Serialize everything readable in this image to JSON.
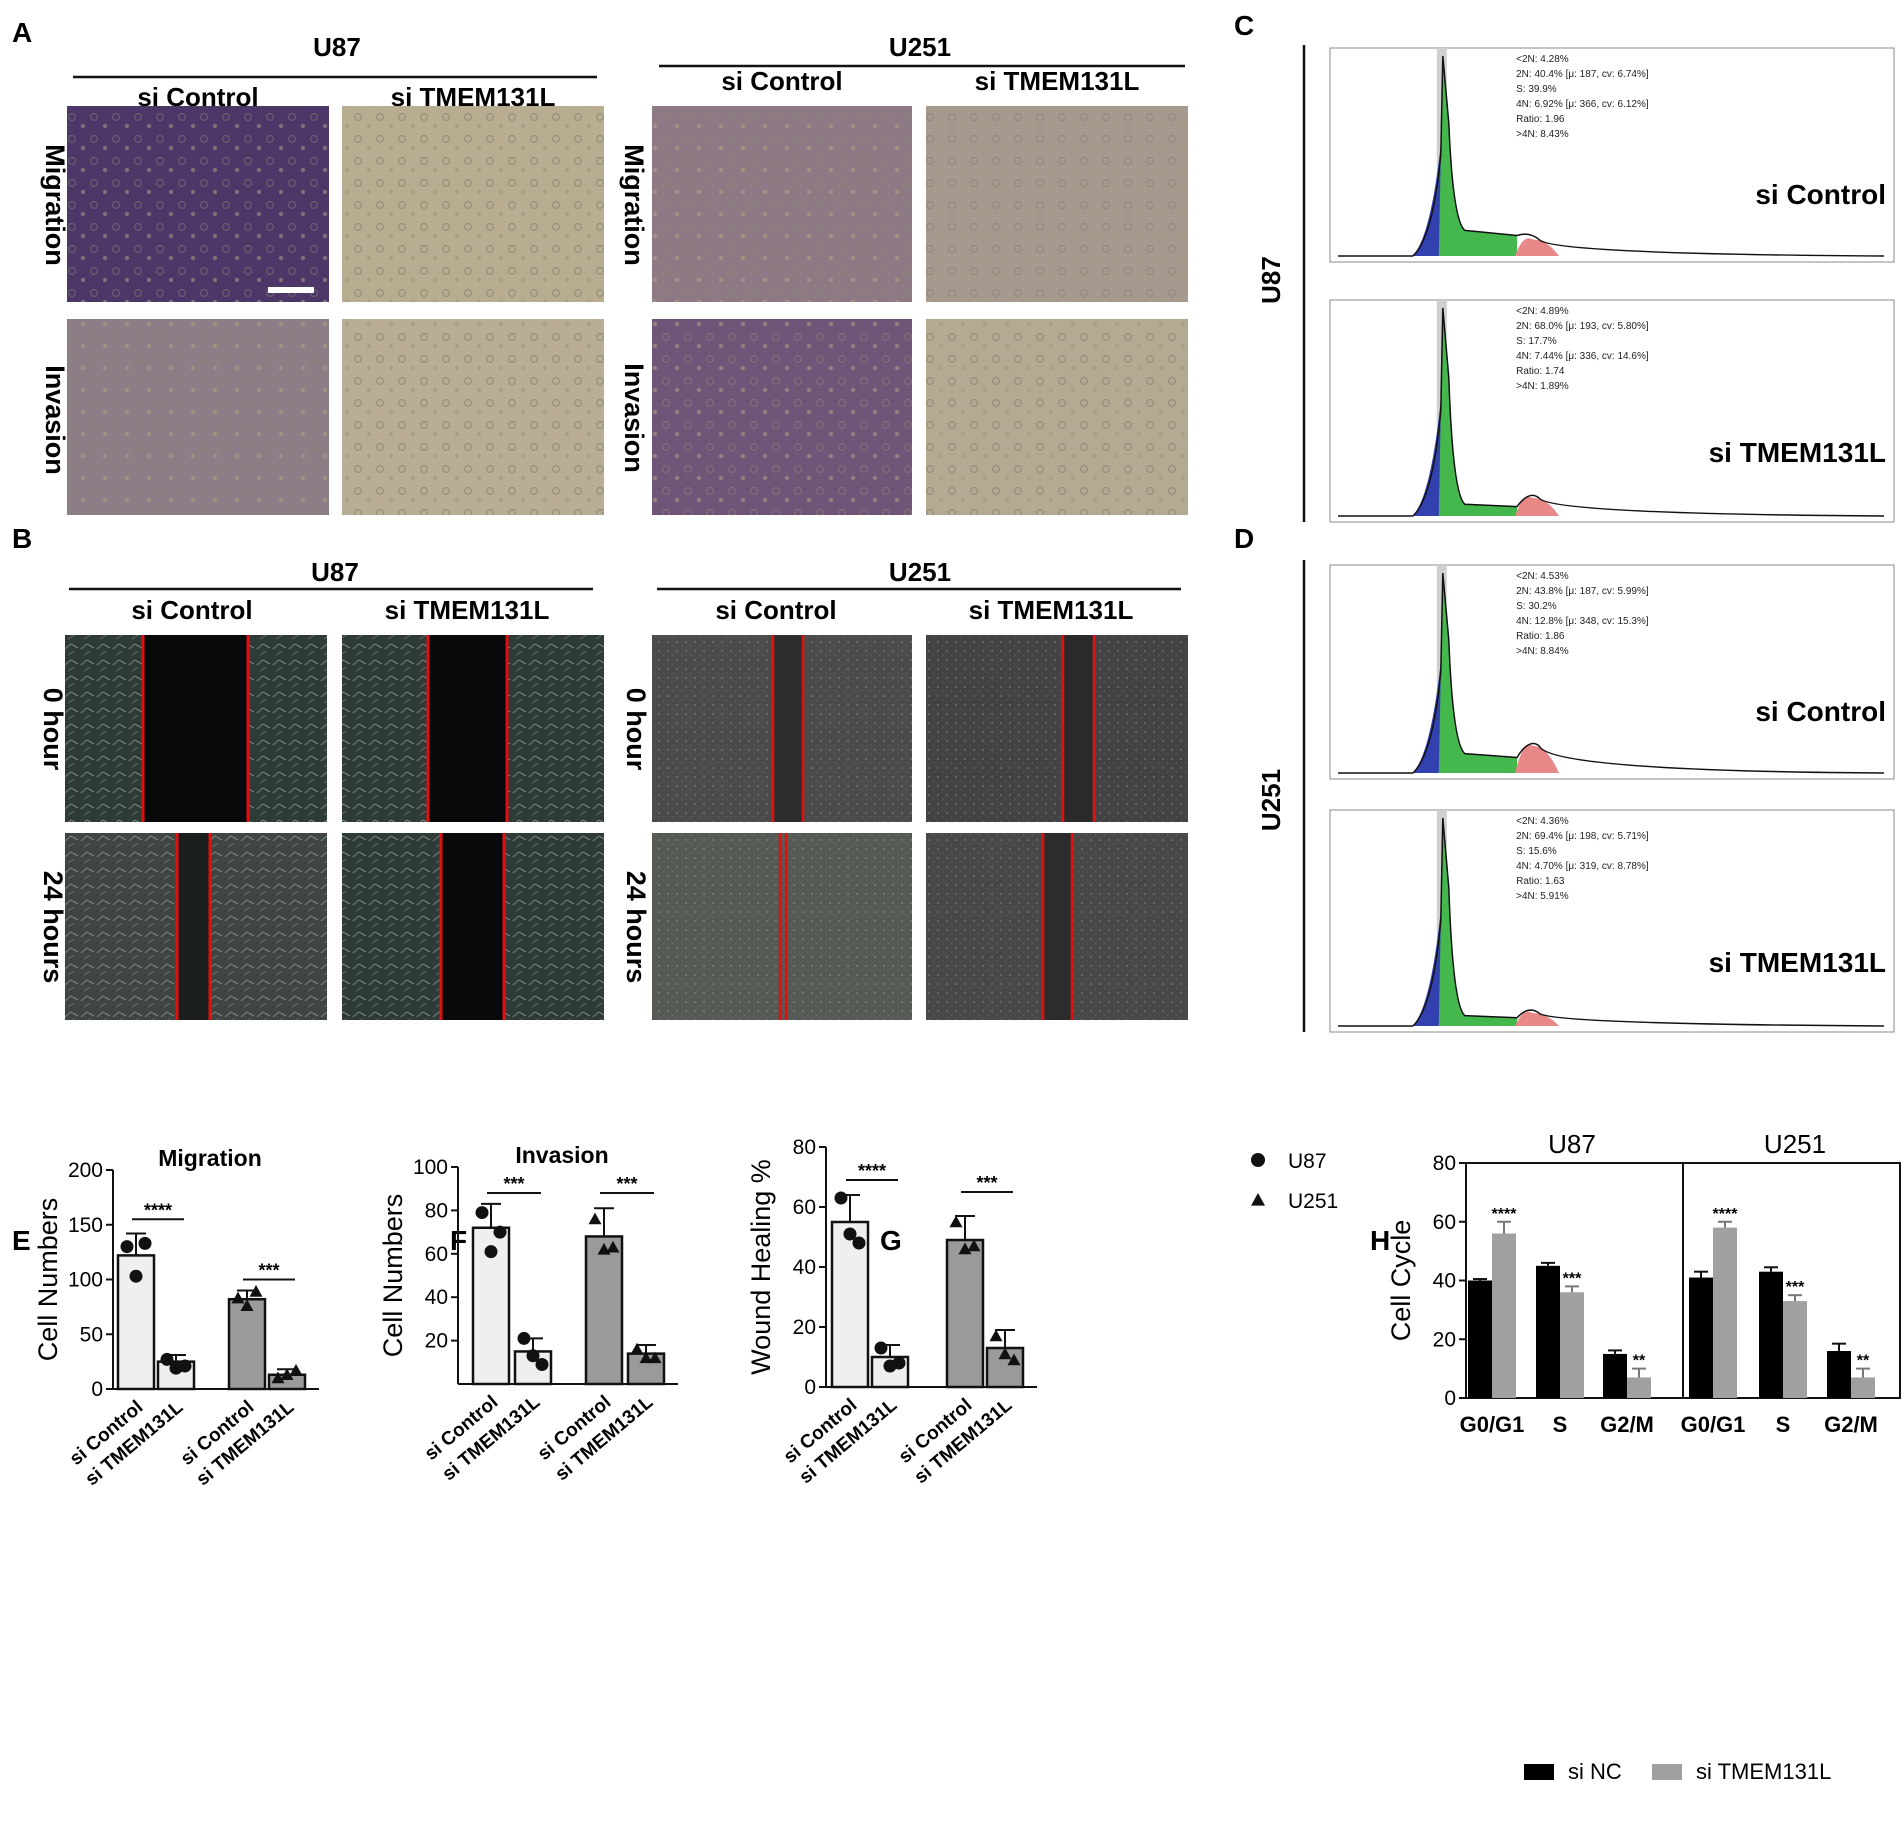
{
  "panels": {
    "A": {
      "letter": "A",
      "groups": [
        {
          "title": "U87",
          "conditions": [
            "si Control",
            "si TMEM131L"
          ],
          "rows": [
            "Migration",
            "Invasion"
          ]
        },
        {
          "title": "U251",
          "conditions": [
            "si Control",
            "si TMEM131L"
          ],
          "rows": [
            "Migration",
            "Invasion"
          ]
        }
      ]
    },
    "B": {
      "letter": "B",
      "groups": [
        {
          "title": "U87",
          "conditions": [
            "si Control",
            "si TMEM131L"
          ],
          "rows": [
            "0 hour",
            "24 hours"
          ]
        },
        {
          "title": "U251",
          "conditions": [
            "si Control",
            "si TMEM131L"
          ],
          "rows": [
            "0 hour",
            "24 hours"
          ]
        }
      ]
    },
    "C": {
      "letter": "C",
      "cell_line": "U87",
      "histograms": [
        {
          "label": "si Control",
          "stats": [
            "<2N: 4.28%",
            "2N: 40.4%   [μ: 187, cv: 6.74%]",
            "S: 39.9%",
            "4N: 6.92%   [μ: 366, cv: 6.12%]",
            "Ratio: 1.96",
            ">4N: 8.43%"
          ],
          "s_phase": 39.9,
          "g2m": 6.92
        },
        {
          "label": "si TMEM131L",
          "stats": [
            "<2N: 4.89%",
            "2N: 68.0%   [μ: 193, cv: 5.80%]",
            "S: 17.7%",
            "4N: 7.44%   [μ: 336, cv: 14.6%]",
            "Ratio: 1.74",
            ">4N: 1.89%"
          ],
          "s_phase": 17.7,
          "g2m": 7.44
        }
      ]
    },
    "D": {
      "letter": "D",
      "cell_line": "U251",
      "histograms": [
        {
          "label": "si Control",
          "stats": [
            "<2N: 4.53%",
            "2N: 43.8%   [μ: 187, cv: 5.99%]",
            "S: 30.2%",
            "4N: 12.8%   [μ: 348, cv: 15.3%]",
            "Ratio: 1.86",
            ">4N: 8.84%"
          ],
          "s_phase": 30.2,
          "g2m": 12.8
        },
        {
          "label": "si TMEM131L",
          "stats": [
            "<2N: 4.36%",
            "2N: 69.4%   [μ: 198, cv: 5.71%]",
            "S: 15.6%",
            "4N: 4.70%   [μ: 319, cv: 8.78%]",
            "Ratio: 1.63",
            ">4N: 5.91%"
          ],
          "s_phase": 15.6,
          "g2m": 4.7
        }
      ]
    },
    "E": {
      "letter": "E"
    },
    "F": {
      "letter": "F"
    },
    "G": {
      "letter": "G"
    },
    "H": {
      "letter": "H"
    }
  },
  "colors": {
    "control_bar": "#efefef",
    "knockdown_bar": "#9a9a9a",
    "si_nc": "#000000",
    "si_tmem": "#a0a0a0",
    "migration_bg": "#b9ad8f",
    "stain": "#5a2f7c",
    "wound_line": "#e11010",
    "hist_g1": "#3a8b3a",
    "hist_s": "#45b84d",
    "hist_b": "#3340b0",
    "hist_g2": "#e88888"
  },
  "chart_data": [
    {
      "panel": "E",
      "type": "bar",
      "title": "Migration",
      "ylabel": "Cell Numbers",
      "xlabel": "",
      "ylim": [
        0,
        200
      ],
      "yticks": [
        0,
        50,
        100,
        150,
        200
      ],
      "categories": [
        "si Control",
        "si TMEM131L",
        "si Control",
        "si TMEM131L"
      ],
      "values": [
        122,
        25,
        82,
        13
      ],
      "errors": [
        20,
        6,
        8,
        5
      ],
      "points": [
        [
          130,
          103,
          133
        ],
        [
          27,
          19,
          21
        ],
        [
          83,
          76,
          89
        ],
        [
          10,
          13,
          17
        ]
      ],
      "markers": [
        "circle",
        "circle",
        "triangle",
        "triangle"
      ],
      "significance": [
        {
          "from": 0,
          "to": 1,
          "label": "****",
          "y": 155
        },
        {
          "from": 2,
          "to": 3,
          "label": "***",
          "y": 100
        }
      ]
    },
    {
      "panel": "F",
      "type": "bar",
      "title": "Invasion",
      "ylabel": "Cell Numbers",
      "xlabel": "",
      "ylim": [
        0,
        100
      ],
      "yticks": [
        20,
        40,
        60,
        80,
        100
      ],
      "categories": [
        "si Control",
        "si TMEM131L",
        "si Control",
        "si TMEM131L"
      ],
      "values": [
        72,
        15,
        68,
        14
      ],
      "errors": [
        11,
        6,
        13,
        4
      ],
      "points": [
        [
          79,
          61,
          70
        ],
        [
          21,
          13,
          9
        ],
        [
          76,
          62,
          63
        ],
        [
          16,
          12,
          12
        ]
      ],
      "markers": [
        "circle",
        "circle",
        "triangle",
        "triangle"
      ],
      "significance": [
        {
          "from": 0,
          "to": 1,
          "label": "***",
          "y": 88
        },
        {
          "from": 2,
          "to": 3,
          "label": "***",
          "y": 88
        }
      ]
    },
    {
      "panel": "G",
      "type": "bar",
      "title": "",
      "ylabel": "Wound Healing %",
      "xlabel": "",
      "ylim": [
        0,
        80
      ],
      "yticks": [
        0,
        20,
        40,
        60,
        80
      ],
      "categories": [
        "si Control",
        "si TMEM131L",
        "si Control",
        "si TMEM131L"
      ],
      "values": [
        55,
        10,
        49,
        13
      ],
      "errors": [
        9,
        4,
        8,
        6
      ],
      "points": [
        [
          63,
          51,
          48
        ],
        [
          13,
          7,
          8
        ],
        [
          55,
          46,
          47
        ],
        [
          17,
          11,
          9
        ]
      ],
      "markers": [
        "circle",
        "circle",
        "triangle",
        "triangle"
      ],
      "significance": [
        {
          "from": 0,
          "to": 1,
          "label": "****",
          "y": 69
        },
        {
          "from": 2,
          "to": 3,
          "label": "***",
          "y": 65
        }
      ],
      "legend": [
        {
          "name": "U87",
          "marker": "circle"
        },
        {
          "name": "U251",
          "marker": "triangle"
        }
      ]
    },
    {
      "panel": "H",
      "type": "bar",
      "title": "",
      "ylabel": "Cell Cycle",
      "xlabel": "",
      "ylim": [
        0,
        80
      ],
      "yticks": [
        0,
        20,
        40,
        60,
        80
      ],
      "groups": [
        "U87",
        "U251"
      ],
      "categories": [
        "G0/G1",
        "S",
        "G2/M",
        "G0/G1",
        "S",
        "G2/M"
      ],
      "series": [
        {
          "name": "si NC",
          "values": [
            40,
            45,
            15,
            41,
            43,
            16
          ],
          "errors": [
            0.5,
            1,
            1.2,
            2,
            1.5,
            2.5
          ]
        },
        {
          "name": "si TMEM131L",
          "values": [
            56,
            36,
            7,
            58,
            33,
            7
          ],
          "errors": [
            4,
            2,
            3,
            2,
            2,
            3
          ]
        }
      ],
      "significance": [
        "****",
        "***",
        "**",
        "****",
        "***",
        "**"
      ]
    }
  ]
}
